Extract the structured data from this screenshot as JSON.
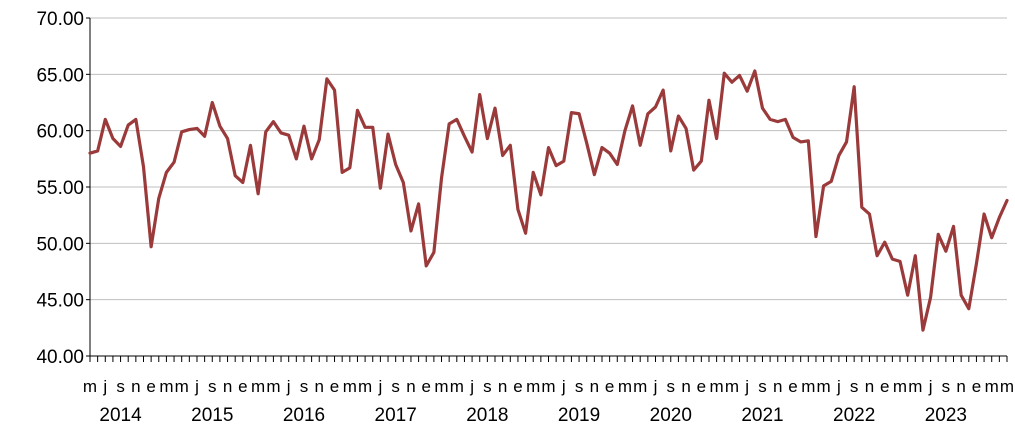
{
  "chart_data": {
    "type": "line",
    "title": "",
    "xlabel": "",
    "ylabel": "",
    "ylim": [
      40,
      70
    ],
    "y_ticks": [
      "40.00",
      "45.00",
      "50.00",
      "55.00",
      "60.00",
      "65.00",
      "70.00"
    ],
    "grid": true,
    "legend": "none",
    "line_color": "#9B3A3A",
    "grid_color": "#BFBFBF",
    "year_labels": [
      "2014",
      "2015",
      "2016",
      "2017",
      "2018",
      "2019",
      "2020",
      "2021",
      "2022",
      "2023"
    ],
    "month_labels": [
      "m",
      "j",
      "s",
      "n",
      "e",
      "m",
      "m",
      "j",
      "s",
      "n",
      "e",
      "m",
      "m",
      "j",
      "s",
      "n",
      "e",
      "m",
      "m",
      "j",
      "s",
      "n",
      "e",
      "m",
      "m",
      "j",
      "s",
      "n",
      "e",
      "m",
      "m",
      "j",
      "s",
      "n",
      "e",
      "m",
      "m",
      "j",
      "s",
      "n",
      "e",
      "m",
      "m",
      "j",
      "s",
      "n",
      "e",
      "m",
      "m",
      "j",
      "s",
      "n",
      "e",
      "m",
      "m",
      "j",
      "s",
      "n",
      "e",
      "m",
      "m"
    ],
    "x_start": "2014-03",
    "x_end": "2023-05",
    "values": [
      58.0,
      58.2,
      61.0,
      59.3,
      58.6,
      60.5,
      61.0,
      56.8,
      49.7,
      54.0,
      56.3,
      57.2,
      59.9,
      60.1,
      60.2,
      59.5,
      62.5,
      60.4,
      59.3,
      56.0,
      55.4,
      58.7,
      54.4,
      59.9,
      60.8,
      59.8,
      59.6,
      57.5,
      60.4,
      57.5,
      59.2,
      64.6,
      63.6,
      56.3,
      56.7,
      61.8,
      60.3,
      60.3,
      54.9,
      59.7,
      57.0,
      55.4,
      51.1,
      53.5,
      48.0,
      49.2,
      55.8,
      60.6,
      61.0,
      59.5,
      58.1,
      63.2,
      59.3,
      62.0,
      57.8,
      58.7,
      53.0,
      50.9,
      56.3,
      54.3,
      58.5,
      56.9,
      57.3,
      61.6,
      61.5,
      58.9,
      56.1,
      58.5,
      58.0,
      57.0,
      60.0,
      62.2,
      58.7,
      61.5,
      62.1,
      63.6,
      58.2,
      61.3,
      60.2,
      56.5,
      57.3,
      62.7,
      59.3,
      65.1,
      64.3,
      64.9,
      63.5,
      65.3,
      62.0,
      61.0,
      60.8,
      61.0,
      59.4,
      59.0,
      59.1,
      50.6,
      55.1,
      55.5,
      57.8,
      59.0,
      63.9,
      53.2,
      52.6,
      48.9,
      50.1,
      48.6,
      48.4,
      45.4,
      48.9,
      42.3,
      45.2,
      50.8,
      49.3,
      51.5,
      45.4,
      44.2,
      48.2,
      52.6,
      50.5,
      52.3,
      53.8
    ]
  }
}
